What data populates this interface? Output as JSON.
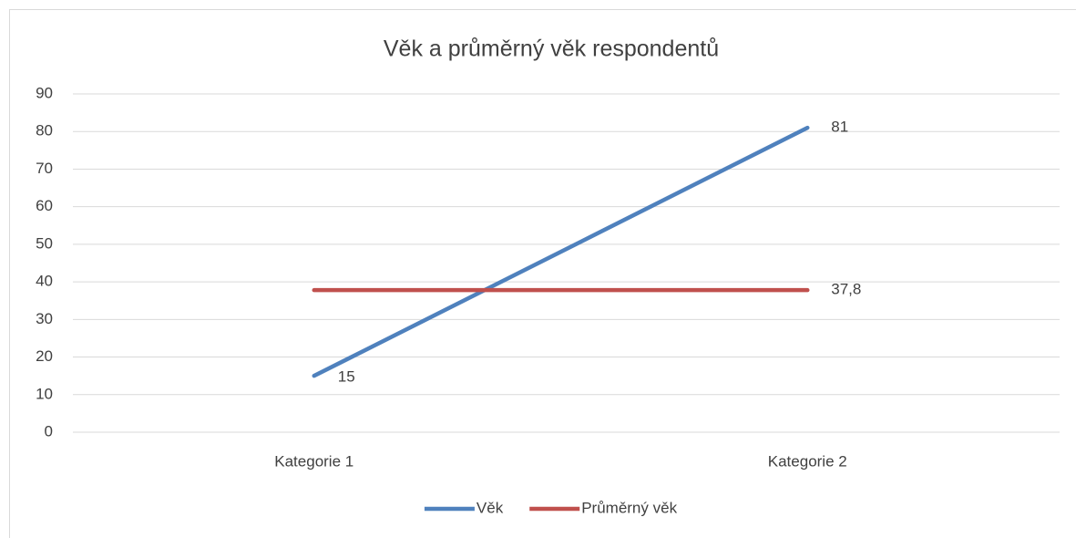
{
  "chart_data": {
    "type": "line",
    "title": "Věk a průměrný věk respondentů",
    "categories": [
      "Kategorie 1",
      "Kategorie 2"
    ],
    "series": [
      {
        "name": "Věk",
        "color": "#4f81bd",
        "values": [
          15,
          81
        ]
      },
      {
        "name": "Průměrný věk",
        "color": "#c0504d",
        "values": [
          37.8,
          37.8
        ],
        "value_labels": [
          null,
          "37,8"
        ]
      }
    ],
    "ylim": [
      0,
      90
    ],
    "yticks": [
      0,
      10,
      20,
      30,
      40,
      50,
      60,
      70,
      80,
      90
    ],
    "grid": true,
    "legend": "bottom"
  }
}
